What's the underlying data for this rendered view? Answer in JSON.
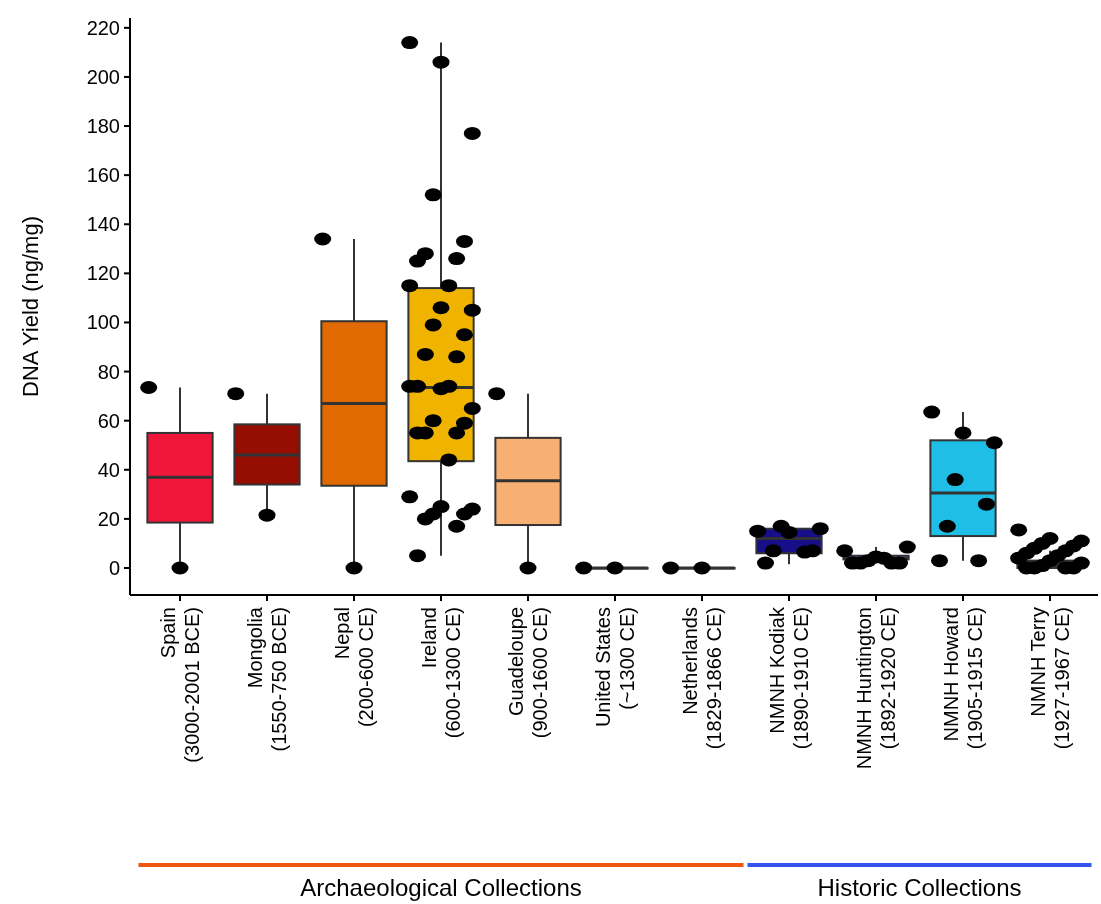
{
  "chart_data": {
    "type": "box",
    "ylabel": "DNA Yield (ng/mg)",
    "categories": [
      "Spain\n(3000-2001 BCE)",
      "Mongolia\n(1550-750 BCE)",
      "Nepal\n(200-600 CE)",
      "Ireland\n(600-1300 CE)",
      "Guadeloupe\n(900-1600 CE)",
      "United States\n(~1300 CE)",
      "Netherlands\n(1829-1866 CE)",
      "NMNH Kodiak\n(1890-1910 CE)",
      "NMNH Huntington\n(1892-1920 CE)",
      "NMNH Howard\n(1905-1915 CE)",
      "NMNH Terry\n(1927-1967 CE)"
    ],
    "ylim": [
      -11,
      224
    ],
    "yticks": [
      0,
      20,
      40,
      60,
      80,
      100,
      120,
      140,
      160,
      180,
      200,
      220
    ],
    "annotations": [
      "Archaeological Collections",
      "Historic Collections"
    ],
    "series": [
      {
        "type": "box",
        "colors": [
          "#f0173a",
          "#960d02",
          "#e06a00",
          "#f0b400",
          "#f7b072",
          "#333333",
          "#333333",
          "#170f8a",
          "#3a78e0",
          "#1ebee6",
          "#2a2a2a"
        ],
        "boxes": [
          {
            "low": 0,
            "q1": 18.5,
            "median": 37,
            "q3": 55,
            "high": 73.5
          },
          {
            "low": 21.5,
            "q1": 34,
            "median": 46,
            "q3": 58.5,
            "high": 71
          },
          {
            "low": 0,
            "q1": 33.5,
            "median": 67,
            "q3": 100.5,
            "high": 134
          },
          {
            "low": 5,
            "q1": 43.5,
            "median": 73.5,
            "q3": 114,
            "high": 214
          },
          {
            "low": 0,
            "q1": 17.5,
            "median": 35.5,
            "q3": 53,
            "high": 71
          },
          {
            "low": 0,
            "q1": 0,
            "median": 0,
            "q3": 0,
            "high": 0
          },
          {
            "low": 0,
            "q1": 0,
            "median": 0,
            "q3": 0,
            "high": 0
          },
          {
            "low": 1.5,
            "q1": 6,
            "median": 12,
            "q3": 16,
            "high": 17
          },
          {
            "low": 2,
            "q1": 3.5,
            "median": 4,
            "q3": 5,
            "high": 8.5
          },
          {
            "low": 3,
            "q1": 13,
            "median": 30.5,
            "q3": 52,
            "high": 63.5
          },
          {
            "low": 0,
            "q1": 0,
            "median": 1,
            "q3": 3,
            "high": 7
          }
        ]
      },
      {
        "type": "scatter",
        "color": "#000000",
        "marker": "circle",
        "x": [
          "Spain\n(3000-2001 BCE)",
          "Spain\n(3000-2001 BCE)",
          "Mongolia\n(1550-750 BCE)",
          "Mongolia\n(1550-750 BCE)",
          "Nepal\n(200-600 CE)",
          "Nepal\n(200-600 CE)",
          "Ireland\n(600-1300 CE)",
          "Ireland\n(600-1300 CE)",
          "Ireland\n(600-1300 CE)",
          "Ireland\n(600-1300 CE)",
          "Ireland\n(600-1300 CE)",
          "Ireland\n(600-1300 CE)",
          "Ireland\n(600-1300 CE)",
          "Ireland\n(600-1300 CE)",
          "Ireland\n(600-1300 CE)",
          "Ireland\n(600-1300 CE)",
          "Ireland\n(600-1300 CE)",
          "Ireland\n(600-1300 CE)",
          "Ireland\n(600-1300 CE)",
          "Ireland\n(600-1300 CE)",
          "Ireland\n(600-1300 CE)",
          "Ireland\n(600-1300 CE)",
          "Ireland\n(600-1300 CE)",
          "Ireland\n(600-1300 CE)",
          "Ireland\n(600-1300 CE)",
          "Ireland\n(600-1300 CE)",
          "Ireland\n(600-1300 CE)",
          "Ireland\n(600-1300 CE)",
          "Ireland\n(600-1300 CE)",
          "Ireland\n(600-1300 CE)",
          "Ireland\n(600-1300 CE)",
          "Ireland\n(600-1300 CE)",
          "Ireland\n(600-1300 CE)",
          "Ireland\n(600-1300 CE)",
          "Ireland\n(600-1300 CE)",
          "Ireland\n(600-1300 CE)",
          "Ireland\n(600-1300 CE)",
          "Ireland\n(600-1300 CE)",
          "Ireland\n(600-1300 CE)",
          "Ireland\n(600-1300 CE)",
          "Ireland\n(600-1300 CE)",
          "Guadeloupe\n(900-1600 CE)",
          "Guadeloupe\n(900-1600 CE)",
          "United States\n(~1300 CE)",
          "United States\n(~1300 CE)",
          "Netherlands\n(1829-1866 CE)",
          "Netherlands\n(1829-1866 CE)",
          "NMNH Kodiak\n(1890-1910 CE)",
          "NMNH Kodiak\n(1890-1910 CE)",
          "NMNH Kodiak\n(1890-1910 CE)",
          "NMNH Kodiak\n(1890-1910 CE)",
          "NMNH Kodiak\n(1890-1910 CE)",
          "NMNH Kodiak\n(1890-1910 CE)",
          "NMNH Kodiak\n(1890-1910 CE)",
          "NMNH Kodiak\n(1890-1910 CE)",
          "NMNH Huntington\n(1892-1920 CE)",
          "NMNH Huntington\n(1892-1920 CE)",
          "NMNH Huntington\n(1892-1920 CE)",
          "NMNH Huntington\n(1892-1920 CE)",
          "NMNH Huntington\n(1892-1920 CE)",
          "NMNH Huntington\n(1892-1920 CE)",
          "NMNH Huntington\n(1892-1920 CE)",
          "NMNH Huntington\n(1892-1920 CE)",
          "NMNH Huntington\n(1892-1920 CE)",
          "NMNH Howard\n(1905-1915 CE)",
          "NMNH Howard\n(1905-1915 CE)",
          "NMNH Howard\n(1905-1915 CE)",
          "NMNH Howard\n(1905-1915 CE)",
          "NMNH Howard\n(1905-1915 CE)",
          "NMNH Howard\n(1905-1915 CE)",
          "NMNH Howard\n(1905-1915 CE)",
          "NMNH Howard\n(1905-1915 CE)",
          "NMNH Terry\n(1927-1967 CE)",
          "NMNH Terry\n(1927-1967 CE)",
          "NMNH Terry\n(1927-1967 CE)",
          "NMNH Terry\n(1927-1967 CE)",
          "NMNH Terry\n(1927-1967 CE)",
          "NMNH Terry\n(1927-1967 CE)",
          "NMNH Terry\n(1927-1967 CE)",
          "NMNH Terry\n(1927-1967 CE)",
          "NMNH Terry\n(1927-1967 CE)",
          "NMNH Terry\n(1927-1967 CE)",
          "NMNH Terry\n(1927-1967 CE)",
          "NMNH Terry\n(1927-1967 CE)",
          "NMNH Terry\n(1927-1967 CE)",
          "NMNH Terry\n(1927-1967 CE)",
          "NMNH Terry\n(1927-1967 CE)",
          "NMNH Terry\n(1927-1967 CE)",
          "NMNH Terry\n(1927-1967 CE)"
        ],
        "values": [
          73.5,
          0,
          71,
          21.5,
          134,
          0,
          214,
          206,
          177,
          152,
          133,
          128,
          126,
          125,
          115,
          115,
          106,
          105,
          99,
          95,
          87,
          86,
          74,
          74,
          74,
          73,
          65,
          60,
          59,
          55,
          55,
          55,
          44,
          29,
          25,
          24,
          22,
          22,
          20,
          17,
          5,
          71,
          0,
          0,
          0,
          0,
          0,
          15,
          14.5,
          16,
          17,
          7,
          7,
          6.5,
          2,
          7,
          4.5,
          8.5,
          3,
          2,
          2,
          2,
          2,
          4,
          63.5,
          55,
          51,
          36,
          26,
          17,
          3,
          3,
          15.5,
          12,
          11,
          10,
          9,
          8,
          7,
          6,
          5,
          4,
          3,
          2,
          1,
          0,
          0,
          0,
          0
        ]
      }
    ]
  }
}
